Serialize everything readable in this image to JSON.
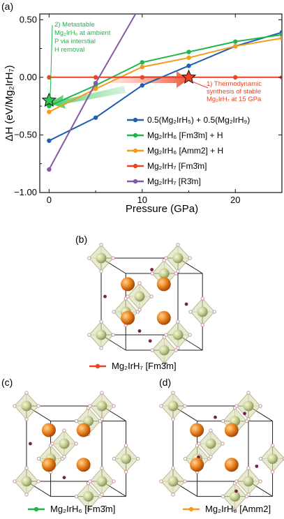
{
  "panels": {
    "a": "(a)",
    "b": "(b)",
    "c": "(c)",
    "d": "(d)"
  },
  "chart_data": {
    "type": "line",
    "xlabel": "Pressure (GPa)",
    "ylabel": "ΔH (eV/Mg₂IrH₇)",
    "xlim": [
      -1,
      25
    ],
    "ylim": [
      -1.0,
      0.55
    ],
    "x_ticks": [
      0,
      10,
      20
    ],
    "y_ticks": [
      -1.0,
      -0.5,
      0.0,
      0.5
    ],
    "x_tick_labels": [
      "0",
      "10",
      "20"
    ],
    "y_tick_labels": [
      "−1.00",
      "−0.50",
      "0.00",
      "0.50"
    ],
    "grid": false,
    "legend_placement": "bottom-right",
    "series": [
      {
        "name": "0.5(Mg₂IrH₅) + 0.5(Mg₂IrH₉)",
        "color": "#1f5fae",
        "x": [
          0,
          5,
          10,
          15,
          20,
          25
        ],
        "y": [
          -0.55,
          -0.35,
          -0.07,
          0.1,
          0.27,
          0.39
        ]
      },
      {
        "name": "Mg₂IrH₆ [Fm3̄m] + H",
        "color": "#1fb64c",
        "x": [
          0,
          5,
          10,
          15,
          20,
          25
        ],
        "y": [
          -0.25,
          -0.07,
          0.13,
          0.22,
          0.31,
          0.37
        ]
      },
      {
        "name": "Mg₂IrH₆ [Amm2] + H",
        "color": "#f59a1c",
        "x": [
          0,
          5,
          10,
          15,
          20,
          25
        ],
        "y": [
          -0.3,
          -0.1,
          0.09,
          0.17,
          0.27,
          0.34
        ]
      },
      {
        "name": "Mg₂IrH₇ [Fm3̄m]",
        "color": "#ee4223",
        "x": [
          0,
          5,
          10,
          15,
          20,
          25
        ],
        "y": [
          0,
          0,
          0,
          0,
          0,
          0
        ]
      },
      {
        "name": "Mg₂IrH₇ [R3̄m]",
        "color": "#8659a6",
        "x": [
          0,
          5,
          10
        ],
        "y": [
          -0.8,
          -0.05,
          0.65
        ]
      }
    ],
    "annotations": [
      {
        "lines": [
          "2) Metastable",
          "Mg₂IrH₆ at ambient",
          "P via interstial",
          "H removal"
        ],
        "color": "#1fb64c"
      },
      {
        "lines": [
          "1) Thermodynamic",
          "synthesis of stable",
          "Mg₂IrH₇ at 15 GPa"
        ],
        "color": "#ee4223"
      }
    ],
    "markers": [
      {
        "label": "green-star",
        "x": 0,
        "y": -0.2,
        "color": "#2fc553"
      },
      {
        "label": "red-star",
        "x": 15,
        "y": 0,
        "color": "#ee4223"
      }
    ]
  },
  "structures": {
    "b": {
      "legend": "Mg₂IrH₇ [Fm3̄m]",
      "color": "#ee4223"
    },
    "c": {
      "legend": "Mg₂IrH₆ [Fm3̄m]",
      "color": "#1fb64c"
    },
    "d": {
      "legend": "Mg₂IrH₆ [Amm2]",
      "color": "#f59a1c"
    }
  }
}
